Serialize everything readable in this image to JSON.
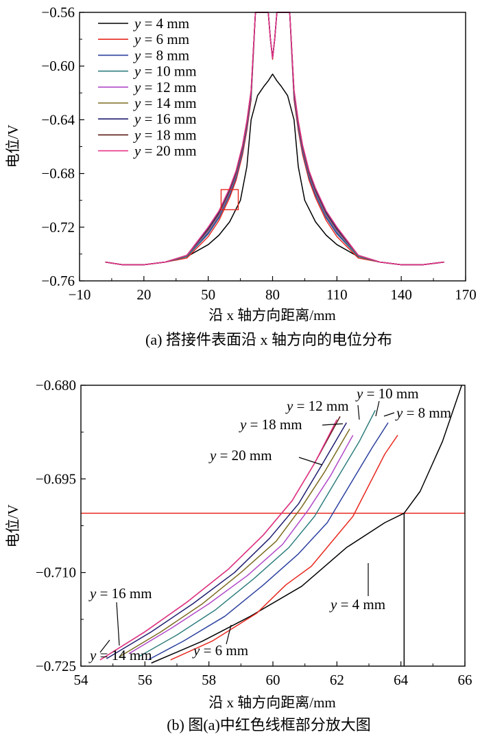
{
  "colors": {
    "y4": "#000000",
    "y6": "#e8281e",
    "y8": "#2a3f9e",
    "y10": "#2e7d7d",
    "y12": "#b048c8",
    "y14": "#7a6a1e",
    "y16": "#1c1c6e",
    "y18": "#5a1a12",
    "y20": "#e8338a",
    "redbox": "#e8281e"
  },
  "chart_data": [
    {
      "id": "a",
      "type": "line",
      "title": "",
      "caption": "(a) 搭接件表面沿 x 轴方向的电位分布",
      "xlabel": "沿 x 轴方向距离/mm",
      "ylabel": "电位/V",
      "xlim": [
        -10,
        170
      ],
      "ylim": [
        -0.76,
        -0.56
      ],
      "xticks": [
        "-10",
        "20",
        "50",
        "80",
        "110",
        "140",
        "170"
      ],
      "yticks": [
        "-0.76",
        "-0.72",
        "-0.68",
        "-0.64",
        "-0.60",
        "-0.56"
      ],
      "legend_position": "top-left",
      "zoom_box": {
        "x": [
          56,
          64
        ],
        "y": [
          -0.707,
          -0.692
        ]
      },
      "series": [
        {
          "name": "y = 4 mm",
          "color_key": "y4",
          "x": [
            2,
            10,
            20,
            30,
            40,
            50,
            55,
            60,
            65,
            68,
            70,
            73,
            76,
            78,
            80,
            82,
            84,
            87,
            90,
            92,
            95,
            100,
            105,
            110,
            120,
            130,
            140,
            150,
            160
          ],
          "y": [
            -0.746,
            -0.748,
            -0.748,
            -0.746,
            -0.742,
            -0.733,
            -0.726,
            -0.716,
            -0.7,
            -0.675,
            -0.64,
            -0.622,
            -0.615,
            -0.611,
            -0.606,
            -0.611,
            -0.615,
            -0.622,
            -0.64,
            -0.675,
            -0.7,
            -0.716,
            -0.726,
            -0.733,
            -0.742,
            -0.746,
            -0.748,
            -0.748,
            -0.746
          ]
        },
        {
          "name": "y = 6 mm",
          "color_key": "y6",
          "x": [
            2,
            10,
            20,
            30,
            40,
            50,
            55,
            60,
            63,
            66,
            68,
            70,
            72,
            75,
            78,
            79,
            80,
            81,
            82,
            85,
            88,
            90,
            92,
            94,
            97,
            100,
            105,
            110,
            120,
            130,
            140,
            150,
            160
          ],
          "y": [
            -0.746,
            -0.748,
            -0.748,
            -0.746,
            -0.743,
            -0.727,
            -0.715,
            -0.698,
            -0.685,
            -0.666,
            -0.648,
            -0.625,
            -0.56,
            -0.56,
            -0.56,
            -0.58,
            -0.595,
            -0.58,
            -0.56,
            -0.56,
            -0.56,
            -0.625,
            -0.648,
            -0.666,
            -0.685,
            -0.698,
            -0.715,
            -0.727,
            -0.743,
            -0.746,
            -0.748,
            -0.748,
            -0.746
          ]
        },
        {
          "name": "y = 8 mm",
          "color_key": "y8",
          "x": [
            2,
            10,
            20,
            30,
            40,
            50,
            55,
            60,
            63,
            66,
            68,
            70,
            72,
            75,
            78,
            79,
            80,
            81,
            82,
            85,
            88,
            90,
            92,
            94,
            97,
            100,
            105,
            110,
            120,
            130,
            140,
            150,
            160
          ],
          "y": [
            -0.746,
            -0.748,
            -0.748,
            -0.746,
            -0.742,
            -0.725,
            -0.713,
            -0.696,
            -0.683,
            -0.664,
            -0.646,
            -0.623,
            -0.56,
            -0.56,
            -0.56,
            -0.58,
            -0.594,
            -0.58,
            -0.56,
            -0.56,
            -0.56,
            -0.623,
            -0.646,
            -0.664,
            -0.683,
            -0.696,
            -0.713,
            -0.725,
            -0.742,
            -0.746,
            -0.748,
            -0.748,
            -0.746
          ]
        },
        {
          "name": "y = 10 mm",
          "color_key": "y10",
          "x": [
            2,
            10,
            20,
            30,
            40,
            50,
            55,
            60,
            63,
            66,
            68,
            70,
            72,
            75,
            78,
            79,
            80,
            81,
            82,
            85,
            88,
            90,
            92,
            94,
            97,
            100,
            105,
            110,
            120,
            130,
            140,
            150,
            160
          ],
          "y": [
            -0.746,
            -0.748,
            -0.748,
            -0.746,
            -0.742,
            -0.724,
            -0.712,
            -0.695,
            -0.682,
            -0.663,
            -0.645,
            -0.622,
            -0.56,
            -0.56,
            -0.56,
            -0.58,
            -0.594,
            -0.58,
            -0.56,
            -0.56,
            -0.56,
            -0.622,
            -0.645,
            -0.663,
            -0.682,
            -0.695,
            -0.712,
            -0.724,
            -0.742,
            -0.746,
            -0.748,
            -0.748,
            -0.746
          ]
        },
        {
          "name": "y = 12 mm",
          "color_key": "y12",
          "x": [
            2,
            10,
            20,
            30,
            40,
            50,
            55,
            60,
            63,
            66,
            68,
            70,
            72,
            75,
            78,
            79,
            80,
            81,
            82,
            85,
            88,
            90,
            92,
            94,
            97,
            100,
            105,
            110,
            120,
            130,
            140,
            150,
            160
          ],
          "y": [
            -0.746,
            -0.748,
            -0.748,
            -0.746,
            -0.741,
            -0.723,
            -0.711,
            -0.694,
            -0.681,
            -0.662,
            -0.644,
            -0.621,
            -0.56,
            -0.56,
            -0.56,
            -0.58,
            -0.594,
            -0.58,
            -0.56,
            -0.56,
            -0.56,
            -0.621,
            -0.644,
            -0.662,
            -0.681,
            -0.694,
            -0.711,
            -0.723,
            -0.741,
            -0.746,
            -0.748,
            -0.748,
            -0.746
          ]
        },
        {
          "name": "y = 14 mm",
          "color_key": "y14",
          "x": [
            2,
            10,
            20,
            30,
            40,
            50,
            55,
            60,
            63,
            66,
            68,
            70,
            72,
            75,
            78,
            79,
            80,
            81,
            82,
            85,
            88,
            90,
            92,
            94,
            97,
            100,
            105,
            110,
            120,
            130,
            140,
            150,
            160
          ],
          "y": [
            -0.746,
            -0.748,
            -0.748,
            -0.746,
            -0.741,
            -0.722,
            -0.71,
            -0.693,
            -0.68,
            -0.661,
            -0.643,
            -0.62,
            -0.56,
            -0.56,
            -0.56,
            -0.58,
            -0.594,
            -0.58,
            -0.56,
            -0.56,
            -0.56,
            -0.62,
            -0.643,
            -0.661,
            -0.68,
            -0.693,
            -0.71,
            -0.722,
            -0.741,
            -0.746,
            -0.748,
            -0.748,
            -0.746
          ]
        },
        {
          "name": "y = 16 mm",
          "color_key": "y16",
          "x": [
            2,
            10,
            20,
            30,
            40,
            50,
            55,
            60,
            63,
            66,
            68,
            70,
            72,
            75,
            78,
            79,
            80,
            81,
            82,
            85,
            88,
            90,
            92,
            94,
            97,
            100,
            105,
            110,
            120,
            130,
            140,
            150,
            160
          ],
          "y": [
            -0.746,
            -0.748,
            -0.748,
            -0.746,
            -0.741,
            -0.721,
            -0.709,
            -0.692,
            -0.679,
            -0.66,
            -0.642,
            -0.619,
            -0.56,
            -0.56,
            -0.56,
            -0.58,
            -0.594,
            -0.58,
            -0.56,
            -0.56,
            -0.56,
            -0.619,
            -0.642,
            -0.66,
            -0.679,
            -0.692,
            -0.709,
            -0.721,
            -0.741,
            -0.746,
            -0.748,
            -0.748,
            -0.746
          ]
        },
        {
          "name": "y = 18 mm",
          "color_key": "y18",
          "x": [
            2,
            10,
            20,
            30,
            40,
            50,
            55,
            60,
            63,
            66,
            68,
            70,
            72,
            75,
            78,
            79,
            80,
            81,
            82,
            85,
            88,
            90,
            92,
            94,
            97,
            100,
            105,
            110,
            120,
            130,
            140,
            150,
            160
          ],
          "y": [
            -0.746,
            -0.748,
            -0.748,
            -0.746,
            -0.741,
            -0.72,
            -0.708,
            -0.691,
            -0.678,
            -0.659,
            -0.641,
            -0.618,
            -0.56,
            -0.56,
            -0.56,
            -0.58,
            -0.594,
            -0.58,
            -0.56,
            -0.56,
            -0.56,
            -0.618,
            -0.641,
            -0.659,
            -0.678,
            -0.691,
            -0.708,
            -0.72,
            -0.741,
            -0.746,
            -0.748,
            -0.748,
            -0.746
          ]
        },
        {
          "name": "y = 20 mm",
          "color_key": "y20",
          "x": [
            2,
            10,
            20,
            30,
            40,
            50,
            55,
            60,
            63,
            66,
            68,
            70,
            72,
            75,
            78,
            79,
            80,
            81,
            82,
            85,
            88,
            90,
            92,
            94,
            97,
            100,
            105,
            110,
            120,
            130,
            140,
            150,
            160
          ],
          "y": [
            -0.746,
            -0.748,
            -0.748,
            -0.746,
            -0.741,
            -0.72,
            -0.708,
            -0.691,
            -0.678,
            -0.659,
            -0.641,
            -0.618,
            -0.56,
            -0.56,
            -0.56,
            -0.58,
            -0.594,
            -0.58,
            -0.56,
            -0.56,
            -0.56,
            -0.618,
            -0.641,
            -0.659,
            -0.678,
            -0.691,
            -0.708,
            -0.72,
            -0.741,
            -0.746,
            -0.748,
            -0.748,
            -0.746
          ]
        }
      ]
    },
    {
      "id": "b",
      "type": "line",
      "title": "",
      "caption": "(b) 图(a)中红色线框部分放大图",
      "xlabel": "沿 x 轴方向距离/mm",
      "ylabel": "电位/V",
      "xlim": [
        54,
        66
      ],
      "ylim": [
        -0.725,
        -0.68
      ],
      "xticks": [
        "54",
        "56",
        "58",
        "60",
        "62",
        "64",
        "66"
      ],
      "yticks": [
        "-0.725",
        "-0.710",
        "-0.695",
        "-0.680"
      ],
      "reference_lines": {
        "horizontal_y": -0.7005,
        "vertical_x": 64.1
      },
      "annotations": [
        "y = 10 mm",
        "y = 12 mm",
        "y = 8 mm",
        "y = 18 mm",
        "y = 20 mm",
        "y = 16 mm",
        "y = 4 mm",
        "y = 14 mm",
        "y = 6 mm"
      ],
      "series": [
        {
          "name": "y = 4 mm",
          "color_key": "y4",
          "x": [
            56.2,
            57.8,
            59.3,
            60.9,
            62.3,
            63.5,
            64.1,
            64.6,
            65.3,
            65.9
          ],
          "y": [
            -0.7245,
            -0.721,
            -0.717,
            -0.7122,
            -0.706,
            -0.702,
            -0.7005,
            -0.697,
            -0.689,
            -0.68
          ]
        },
        {
          "name": "y = 6 mm",
          "color_key": "y6",
          "x": [
            56.8,
            58.1,
            59.5,
            60.4,
            61.2,
            62.5,
            63.5,
            63.9
          ],
          "y": [
            -0.724,
            -0.721,
            -0.7165,
            -0.712,
            -0.709,
            -0.701,
            -0.691,
            -0.688
          ]
        },
        {
          "name": "y = 8 mm",
          "color_key": "y8",
          "x": [
            56.1,
            57.2,
            58.5,
            59.7,
            60.8,
            61.7,
            62.4,
            63.1,
            63.6
          ],
          "y": [
            -0.724,
            -0.721,
            -0.717,
            -0.712,
            -0.707,
            -0.702,
            -0.696,
            -0.69,
            -0.686
          ]
        },
        {
          "name": "y = 10 mm",
          "color_key": "y10",
          "x": [
            55.8,
            57.0,
            58.2,
            59.4,
            60.5,
            61.3,
            62.0,
            62.7,
            63.2
          ],
          "y": [
            -0.7235,
            -0.72,
            -0.716,
            -0.711,
            -0.706,
            -0.701,
            -0.695,
            -0.689,
            -0.684
          ]
        },
        {
          "name": "y = 12 mm",
          "color_key": "y12",
          "x": [
            55.5,
            56.8,
            58.0,
            59.2,
            60.3,
            61.1,
            61.8,
            62.5
          ],
          "y": [
            -0.723,
            -0.719,
            -0.715,
            -0.7105,
            -0.7055,
            -0.7,
            -0.6945,
            -0.688
          ]
        },
        {
          "name": "y = 14 mm",
          "color_key": "y14",
          "x": [
            55.2,
            56.5,
            57.8,
            59.0,
            60.1,
            60.9,
            61.6,
            62.4
          ],
          "y": [
            -0.7235,
            -0.7195,
            -0.715,
            -0.71,
            -0.705,
            -0.6995,
            -0.694,
            -0.687
          ]
        },
        {
          "name": "y = 16 mm",
          "color_key": "y16",
          "x": [
            54.8,
            56.2,
            57.5,
            58.8,
            59.9,
            60.8,
            61.5,
            62.3
          ],
          "y": [
            -0.7238,
            -0.7195,
            -0.715,
            -0.71,
            -0.7045,
            -0.699,
            -0.693,
            -0.686
          ]
        },
        {
          "name": "y = 18 mm",
          "color_key": "y18",
          "x": [
            54.6,
            56.0,
            57.3,
            58.6,
            59.7,
            60.6,
            61.3,
            62.1
          ],
          "y": [
            -0.724,
            -0.7195,
            -0.7148,
            -0.7095,
            -0.704,
            -0.6985,
            -0.6925,
            -0.685
          ]
        },
        {
          "name": "y = 20 mm",
          "color_key": "y20",
          "x": [
            54.6,
            56.0,
            57.3,
            58.6,
            59.7,
            60.6,
            61.3,
            62.0
          ],
          "y": [
            -0.724,
            -0.7195,
            -0.7148,
            -0.7095,
            -0.704,
            -0.6985,
            -0.6925,
            -0.6855
          ]
        }
      ]
    }
  ]
}
